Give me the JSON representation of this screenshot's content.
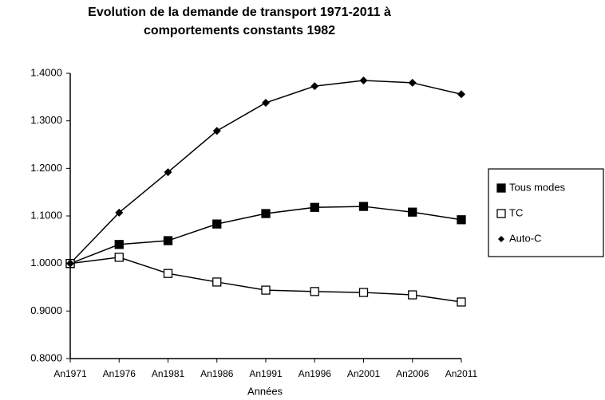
{
  "chart_data": {
    "type": "line",
    "title": [
      "Evolution de la demande de transport 1971-2011 à",
      "comportements constants 1982"
    ],
    "x_label": "Années",
    "categories": [
      "An1971",
      "An1976",
      "An1981",
      "An1986",
      "An1991",
      "An1996",
      "An2001",
      "An2006",
      "An2011"
    ],
    "series": [
      {
        "name": "Tous modes",
        "color": "#000000",
        "marker": "square-filled",
        "values": [
          1.0,
          1.04,
          1.048,
          1.083,
          1.105,
          1.118,
          1.12,
          1.108,
          1.092
        ]
      },
      {
        "name": "TC",
        "color": "#000000",
        "marker": "square-open",
        "values": [
          1.0,
          1.013,
          0.979,
          0.961,
          0.944,
          0.941,
          0.939,
          0.934,
          0.919
        ]
      },
      {
        "name": "Auto-C",
        "color": "#000000",
        "marker": "diamond",
        "values": [
          1.0,
          1.107,
          1.192,
          1.279,
          1.338,
          1.373,
          1.385,
          1.38,
          1.356
        ]
      }
    ],
    "ylim": [
      0.8,
      1.4
    ],
    "yticks": [
      {
        "value": 0.8,
        "label": "0.8000"
      },
      {
        "value": 0.9,
        "label": "0.9000"
      },
      {
        "value": 1.0,
        "label": "1.0000"
      },
      {
        "value": 1.1,
        "label": "1.1000"
      },
      {
        "value": 1.2,
        "label": "1.2000"
      },
      {
        "value": 1.3,
        "label": "1.3000"
      },
      {
        "value": 1.4,
        "label": "1.4000"
      }
    ],
    "grid": false,
    "legend": "right"
  }
}
